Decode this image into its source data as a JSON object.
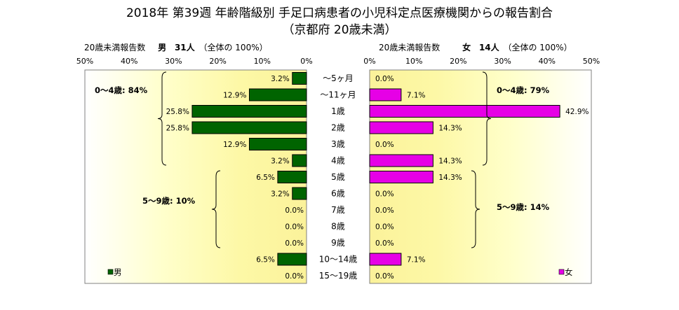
{
  "title": {
    "line1": "2018年 第39週 年齢階級別 手足口病患者の小児科定点医療機関からの報告割合",
    "line2": "（京都府 20歳未満）"
  },
  "male_header": {
    "label": "20歳未満報告数",
    "sex": "男",
    "count": "31人",
    "ratio_note": "（全体の 100%）"
  },
  "female_header": {
    "label": "20歳未満報告数",
    "sex": "女",
    "count": "14人",
    "ratio_note": "（全体の 100%）"
  },
  "colors": {
    "male": "#006400",
    "female": "#e600e6"
  },
  "chart_data": {
    "type": "bar",
    "orientation": "horizontal-butterfly",
    "categories": [
      "～5ヶ月",
      "～11ヶ月",
      "1歳",
      "2歳",
      "3歳",
      "4歳",
      "5歳",
      "6歳",
      "7歳",
      "8歳",
      "9歳",
      "10～14歳",
      "15～19歳"
    ],
    "x_ticks": [
      "50%",
      "40%",
      "30%",
      "20%",
      "10%",
      "0%"
    ],
    "x_ticks_right": [
      "0%",
      "10%",
      "20%",
      "30%",
      "40%",
      "50%"
    ],
    "xlim": [
      0,
      50
    ],
    "series": [
      {
        "name": "男",
        "values": [
          3.2,
          12.9,
          25.8,
          25.8,
          12.9,
          3.2,
          6.5,
          3.2,
          0.0,
          0.0,
          0.0,
          6.5,
          0.0
        ],
        "labels": [
          "3.2%",
          "12.9%",
          "25.8%",
          "25.8%",
          "12.9%",
          "3.2%",
          "6.5%",
          "3.2%",
          "0.0%",
          "0.0%",
          "0.0%",
          "6.5%",
          "0.0%"
        ]
      },
      {
        "name": "女",
        "values": [
          0.0,
          7.1,
          42.9,
          14.3,
          0.0,
          14.3,
          14.3,
          0.0,
          0.0,
          0.0,
          0.0,
          7.1,
          0.0
        ],
        "labels": [
          "0.0%",
          "7.1%",
          "42.9%",
          "14.3%",
          "0.0%",
          "14.3%",
          "14.3%",
          "0.0%",
          "0.0%",
          "0.0%",
          "0.0%",
          "7.1%",
          "0.0%"
        ]
      }
    ],
    "annotations": {
      "male_0_4": "0～4歳: 84%",
      "male_5_9": "5～9歳: 10%",
      "female_0_4": "0～4歳: 79%",
      "female_5_9": "5～9歳: 14%"
    },
    "legend": {
      "male": "男",
      "female": "女"
    }
  }
}
